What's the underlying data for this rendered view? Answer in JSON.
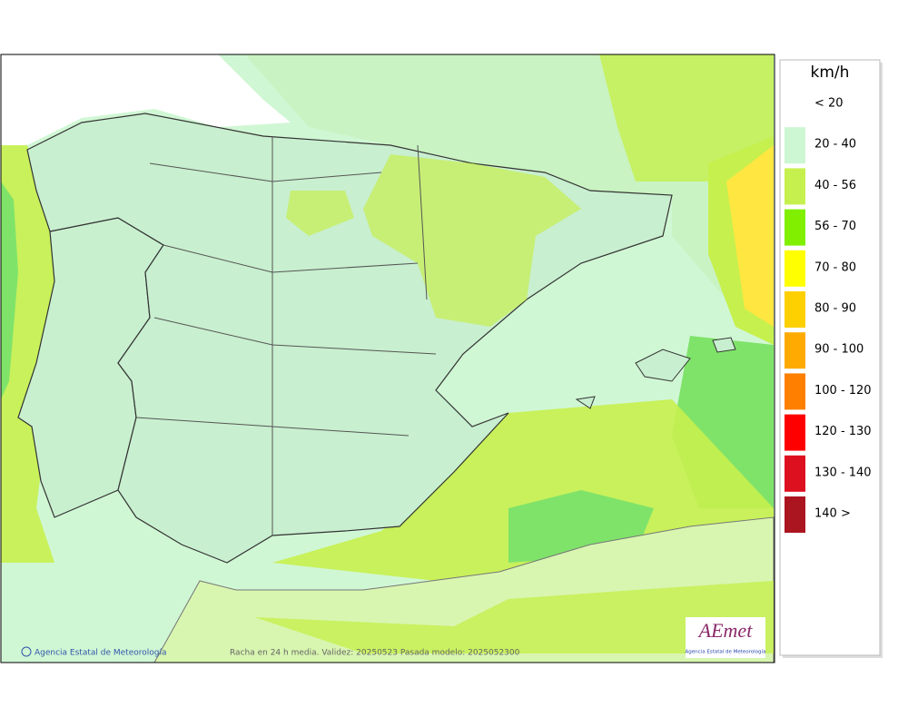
{
  "legend": {
    "title": "km/h",
    "items": [
      {
        "label": "< 20"
      },
      {
        "label": "20 - 40",
        "color": "#ccf7d2"
      },
      {
        "label": "40 - 56",
        "color": "#c6f04e"
      },
      {
        "label": "56 - 70",
        "color": "#80f000"
      },
      {
        "label": "70 - 80",
        "color": "#ffff00"
      },
      {
        "label": "80 - 90",
        "color": "#ffd000"
      },
      {
        "label": "90 - 100",
        "color": "#ffaa00"
      },
      {
        "label": "100 - 120",
        "color": "#ff8000"
      },
      {
        "label": "120 - 130",
        "color": "#ff0000"
      },
      {
        "label": "130 - 140",
        "color": "#dd1020"
      },
      {
        "label": "140 >",
        "color": "#aa1520"
      }
    ]
  },
  "footer": {
    "credit": "Agencia Estatal de Meteorología",
    "caption": "Racha en 24 h media. Validez: 20250523 Pasada modelo: 2025052300"
  },
  "logo": {
    "name": "AEmet",
    "subtitle": "Agencia Estatal de Meteorología"
  }
}
